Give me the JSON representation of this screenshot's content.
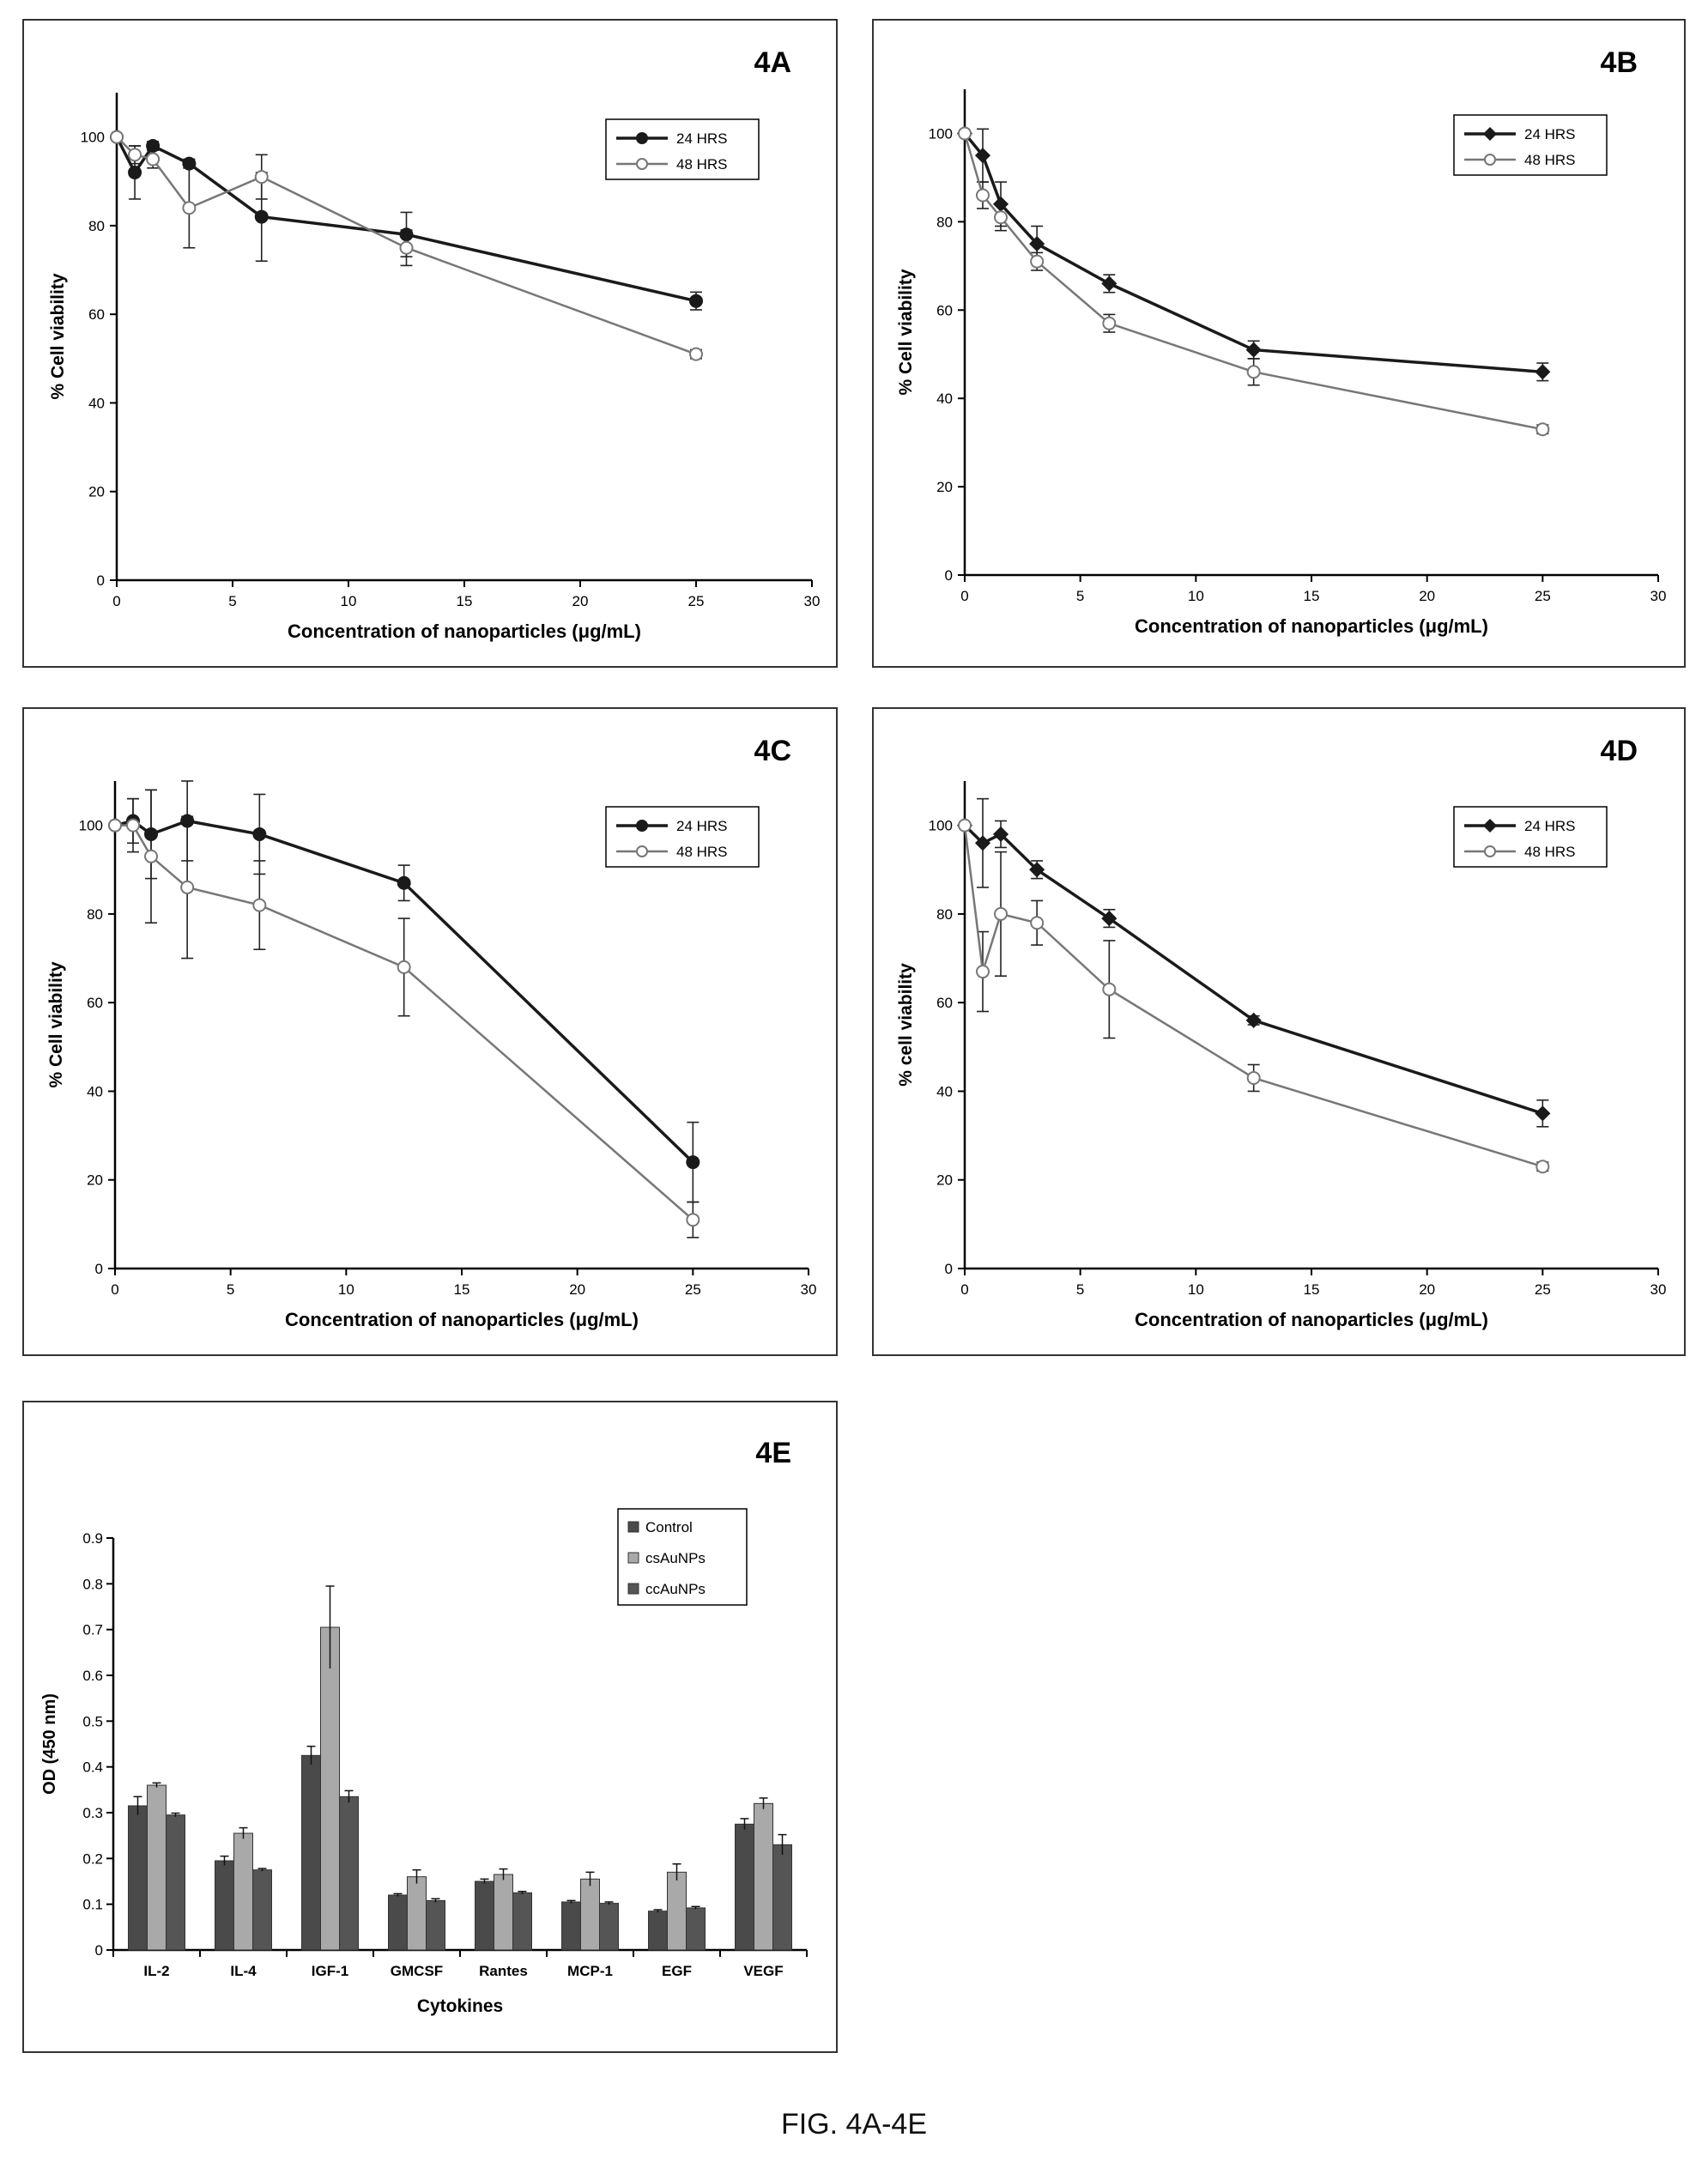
{
  "caption": "FIG. 4A-4E",
  "chart_data": [
    {
      "id": "4A",
      "type": "line",
      "panel_label": "4A",
      "xlabel": "Concentration of nanoparticles (μg/mL)",
      "ylabel": "% Cell viability",
      "xlim": [
        0,
        30
      ],
      "ylim": [
        0,
        110
      ],
      "xticks": [
        0,
        5,
        10,
        15,
        20,
        25,
        30
      ],
      "yticks": [
        0,
        20,
        40,
        60,
        80,
        100
      ],
      "legend_position": "top-right",
      "series": [
        {
          "name": "24 HRS",
          "marker": "filled-circle",
          "x": [
            0,
            0.78,
            1.56,
            3.125,
            6.25,
            12.5,
            25
          ],
          "y": [
            100,
            92,
            98,
            94,
            82,
            78,
            63
          ],
          "err": [
            0,
            6,
            1,
            1,
            10,
            5,
            2
          ]
        },
        {
          "name": "48 HRS",
          "marker": "open-circle",
          "x": [
            0,
            0.78,
            1.56,
            3.125,
            6.25,
            12.5,
            25
          ],
          "y": [
            100,
            96,
            95,
            84,
            91,
            75,
            51
          ],
          "err": [
            0,
            2,
            2,
            9,
            5,
            4,
            1
          ]
        }
      ]
    },
    {
      "id": "4B",
      "type": "line",
      "panel_label": "4B",
      "xlabel": "Concentration of nanoparticles (μg/mL)",
      "ylabel": "% Cell viability",
      "xlim": [
        0,
        30
      ],
      "ylim": [
        0,
        110
      ],
      "xticks": [
        0,
        5,
        10,
        15,
        20,
        25,
        30
      ],
      "yticks": [
        0,
        20,
        40,
        60,
        80,
        100
      ],
      "legend_position": "top-right",
      "series": [
        {
          "name": "24 HRS",
          "marker": "filled-diamond",
          "x": [
            0,
            0.78,
            1.56,
            3.125,
            6.25,
            12.5,
            25
          ],
          "y": [
            100,
            95,
            84,
            75,
            66,
            51,
            46
          ],
          "err": [
            0,
            6,
            5,
            4,
            2,
            2,
            2
          ]
        },
        {
          "name": "48 HRS",
          "marker": "open-circle",
          "x": [
            0,
            0.78,
            1.56,
            3.125,
            6.25,
            12.5,
            25
          ],
          "y": [
            100,
            86,
            81,
            71,
            57,
            46,
            33
          ],
          "err": [
            0,
            3,
            3,
            2,
            2,
            3,
            1
          ]
        }
      ]
    },
    {
      "id": "4C",
      "type": "line",
      "panel_label": "4C",
      "xlabel": "Concentration of nanoparticles (μg/mL)",
      "ylabel": "% Cell viability",
      "xlim": [
        0,
        30
      ],
      "ylim": [
        0,
        110
      ],
      "xticks": [
        0,
        5,
        10,
        15,
        20,
        25,
        30
      ],
      "yticks": [
        0,
        20,
        40,
        60,
        80,
        100
      ],
      "legend_position": "top-right",
      "series": [
        {
          "name": "24 HRS",
          "marker": "filled-circle",
          "x": [
            0,
            0.78,
            1.56,
            3.125,
            6.25,
            12.5,
            25
          ],
          "y": [
            100,
            101,
            98,
            101,
            98,
            87,
            24
          ],
          "err": [
            0,
            5,
            10,
            9,
            9,
            4,
            9
          ]
        },
        {
          "name": "48 HRS",
          "marker": "open-circle",
          "x": [
            0,
            0.78,
            1.56,
            3.125,
            6.25,
            12.5,
            25
          ],
          "y": [
            100,
            100,
            93,
            86,
            82,
            68,
            11
          ],
          "err": [
            0,
            6,
            15,
            16,
            10,
            11,
            4
          ]
        }
      ]
    },
    {
      "id": "4D",
      "type": "line",
      "panel_label": "4D",
      "xlabel": "Concentration of nanoparticles (μg/mL)",
      "ylabel": "% cell viability",
      "xlim": [
        0,
        30
      ],
      "ylim": [
        0,
        110
      ],
      "xticks": [
        0,
        5,
        10,
        15,
        20,
        25,
        30
      ],
      "yticks": [
        0,
        20,
        40,
        60,
        80,
        100
      ],
      "legend_position": "top-right",
      "series": [
        {
          "name": "24 HRS",
          "marker": "filled-diamond",
          "x": [
            0,
            0.78,
            1.56,
            3.125,
            6.25,
            12.5,
            25
          ],
          "y": [
            100,
            96,
            98,
            90,
            79,
            56,
            35
          ],
          "err": [
            0,
            10,
            3,
            2,
            2,
            1,
            3
          ]
        },
        {
          "name": "48 HRS",
          "marker": "open-circle",
          "x": [
            0,
            0.78,
            1.56,
            3.125,
            6.25,
            12.5,
            25
          ],
          "y": [
            100,
            67,
            80,
            78,
            63,
            43,
            23
          ],
          "err": [
            0,
            9,
            14,
            5,
            11,
            3,
            1
          ]
        }
      ]
    },
    {
      "id": "4E",
      "type": "bar",
      "panel_label": "4E",
      "xlabel": "Cytokines",
      "ylabel": "OD (450 nm)",
      "ylim": [
        0,
        0.9
      ],
      "yticks": [
        0,
        0.1,
        0.2,
        0.3,
        0.4,
        0.5,
        0.6,
        0.7,
        0.8,
        0.9
      ],
      "ytick_labels": [
        "0",
        "0.1",
        "0.2",
        "0.3",
        "0.4",
        "0.5",
        "0.6",
        "0.7",
        "0.8",
        "0.9"
      ],
      "legend_position": "top-right",
      "categories": [
        "IL-2",
        "IL-4",
        "IGF-1",
        "GMCSF",
        "Rantes",
        "MCP-1",
        "EGF",
        "VEGF"
      ],
      "series": [
        {
          "name": "Control",
          "color": "#4a4a4a",
          "values": [
            0.315,
            0.195,
            0.425,
            0.12,
            0.15,
            0.105,
            0.085,
            0.275
          ],
          "err": [
            0.02,
            0.01,
            0.02,
            0.003,
            0.005,
            0.003,
            0.003,
            0.012
          ]
        },
        {
          "name": "csAuNPs",
          "color": "#a9a9a9",
          "values": [
            0.36,
            0.255,
            0.705,
            0.16,
            0.165,
            0.155,
            0.17,
            0.32
          ],
          "err": [
            0.005,
            0.012,
            0.09,
            0.015,
            0.012,
            0.015,
            0.018,
            0.012
          ]
        },
        {
          "name": "ccAuNPs",
          "color": "#555555",
          "values": [
            0.295,
            0.175,
            0.335,
            0.108,
            0.125,
            0.102,
            0.092,
            0.23
          ],
          "err": [
            0.004,
            0.003,
            0.013,
            0.004,
            0.003,
            0.003,
            0.003,
            0.022
          ]
        }
      ]
    }
  ]
}
